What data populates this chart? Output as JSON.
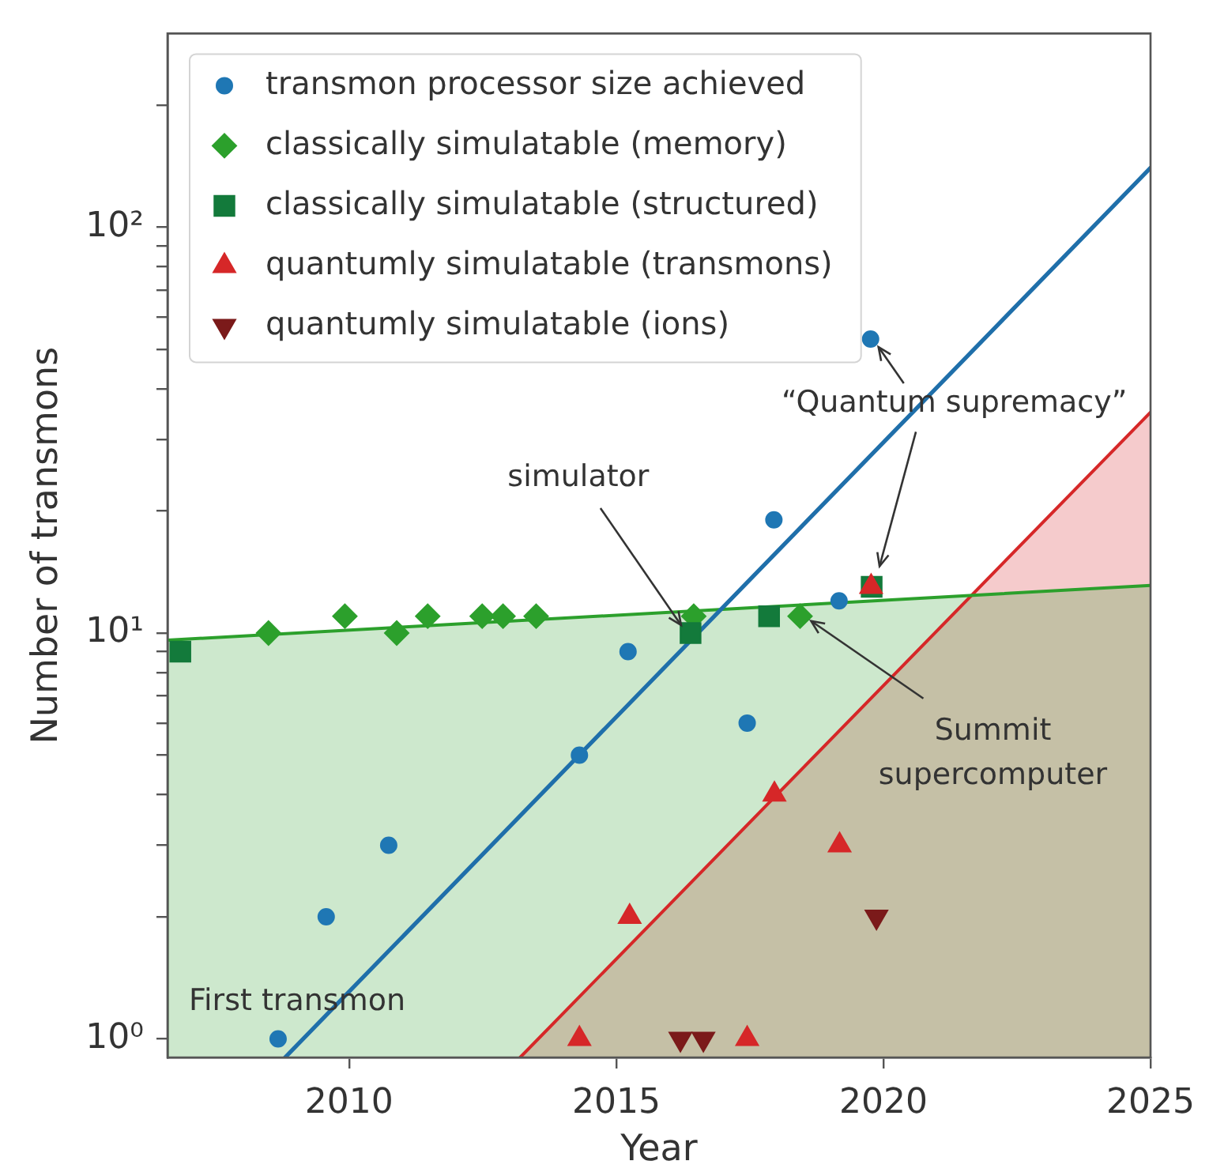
{
  "chart_data": {
    "type": "scatter",
    "xlabel": "Year",
    "ylabel": "Number of transmons",
    "xlim": [
      2006.6,
      2025
    ],
    "xticks": [
      2010,
      2015,
      2020,
      2025
    ],
    "ylim": [
      0.9,
      300
    ],
    "yticks": [
      {
        "value": 1,
        "label": "10⁰"
      },
      {
        "value": 2,
        "label": null
      },
      {
        "value": 3,
        "label": null
      },
      {
        "value": 4,
        "label": null
      },
      {
        "value": 5,
        "label": null
      },
      {
        "value": 6,
        "label": null
      },
      {
        "value": 7,
        "label": null
      },
      {
        "value": 8,
        "label": null
      },
      {
        "value": 9,
        "label": null
      },
      {
        "value": 10,
        "label": "10¹"
      },
      {
        "value": 20,
        "label": null
      },
      {
        "value": 30,
        "label": null
      },
      {
        "value": 40,
        "label": null
      },
      {
        "value": 50,
        "label": null
      },
      {
        "value": 60,
        "label": null
      },
      {
        "value": 70,
        "label": null
      },
      {
        "value": 80,
        "label": null
      },
      {
        "value": 90,
        "label": null
      },
      {
        "value": 100,
        "label": "10²"
      },
      {
        "value": 200,
        "label": null
      }
    ],
    "log": "y",
    "legend": "top left",
    "series": [
      {
        "name": "transmon processor size achieved",
        "type": "scatter",
        "marker": "circle",
        "color": "#1f77b4",
        "x": [
          2008.67,
          2009.57,
          2010.74,
          2014.31,
          2015.22,
          2017.45,
          2017.95,
          2019.17,
          2019.76
        ],
        "values": [
          1,
          2,
          3,
          5,
          9,
          6,
          19,
          12,
          53
        ]
      },
      {
        "name": "classically simulatable (memory)",
        "type": "scatter",
        "marker": "diamond",
        "color": "#2ca02c",
        "x": [
          2008.49,
          2009.92,
          2010.89,
          2011.47,
          2012.49,
          2012.88,
          2013.5,
          2016.45,
          2018.44
        ],
        "values": [
          10,
          11,
          10,
          11,
          11,
          11,
          11,
          11,
          11
        ]
      },
      {
        "name": "classically simulatable (structured)",
        "type": "scatter",
        "marker": "square",
        "color": "#137a3b",
        "x": [
          2006.84,
          2016.39,
          2017.86,
          2019.78
        ],
        "values": [
          9,
          10,
          11,
          13
        ]
      },
      {
        "name": "quantumly simulatable (transmons)",
        "type": "scatter",
        "marker": "triangle",
        "color": "#d62728",
        "x": [
          2014.31,
          2015.25,
          2017.45,
          2017.96,
          2019.18,
          2019.77
        ],
        "values": [
          1,
          2,
          1,
          4,
          3,
          13
        ]
      },
      {
        "name": "quantumly simulatable (ions)",
        "type": "scatter",
        "marker": "triangle_down",
        "color": "#7b1a1a",
        "x": [
          2016.2,
          2016.63,
          2019.87
        ],
        "values": [
          1,
          1,
          2
        ]
      },
      {
        "type": "line",
        "color": "#1f6faa",
        "x": [
          2008.8,
          2025
        ],
        "values": [
          0.9,
          140
        ]
      },
      {
        "type": "area",
        "color": "#2ca02c",
        "x": [
          2006.6,
          2025
        ],
        "values": [
          9.6,
          13.1
        ]
      },
      {
        "type": "area",
        "color": "#d62728",
        "x": [
          2013.2,
          2025
        ],
        "values": [
          0.9,
          35
        ]
      }
    ],
    "annotations": [
      {
        "text": "First transmon",
        "x": 2008.67,
        "y": 1
      },
      {
        "text": "simulator",
        "x": 2016.39,
        "y": 10
      },
      {
        "text": "“Quantum supremacy”",
        "x": 2019.76,
        "y": 53
      },
      {
        "text": "Summit supercomputer",
        "x": 2018.44,
        "y": 11
      }
    ]
  }
}
